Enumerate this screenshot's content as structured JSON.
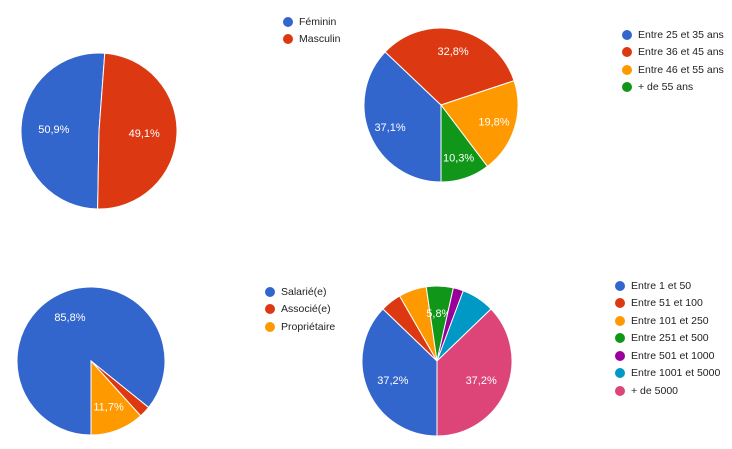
{
  "chart_data": [
    {
      "type": "pie",
      "series": [
        {
          "values": [
            50.9,
            49.1
          ]
        }
      ],
      "categories": [
        "Féminin",
        "Masculin"
      ],
      "colors": [
        "#3366cc",
        "#dc3912"
      ],
      "data_labels": [
        "50,9%",
        "49,1%"
      ]
    },
    {
      "type": "pie",
      "series": [
        {
          "values": [
            37.1,
            32.8,
            19.8,
            10.3
          ]
        }
      ],
      "categories": [
        "Entre 25 et 35 ans",
        "Entre 36 et 45 ans",
        "Entre 46 et 55 ans",
        "+ de 55 ans"
      ],
      "colors": [
        "#3366cc",
        "#dc3912",
        "#ff9900",
        "#109618"
      ],
      "data_labels": [
        "37,1%",
        "32,8%",
        "19,8%",
        "10,3%"
      ]
    },
    {
      "type": "pie",
      "series": [
        {
          "values": [
            85.8,
            2.5,
            11.7
          ]
        }
      ],
      "categories": [
        "Salarié(e)",
        "Associé(e)",
        "Propriétaire"
      ],
      "colors": [
        "#3366cc",
        "#dc3912",
        "#ff9900"
      ],
      "data_labels": [
        "85,8%",
        "",
        "11,7%"
      ]
    },
    {
      "type": "pie",
      "series": [
        {
          "values": [
            37.2,
            4.5,
            6.0,
            5.8,
            2.2,
            7.1,
            37.2
          ]
        }
      ],
      "categories": [
        "Entre 1 et 50",
        "Entre 51 et 100",
        "Entre 101 et 250",
        "Entre 251 et 500",
        "Entre 501 et 1000",
        "Entre 1001 et 5000",
        "+ de 5000"
      ],
      "colors": [
        "#3366cc",
        "#dc3912",
        "#ff9900",
        "#109618",
        "#990099",
        "#0099c6",
        "#dd4477"
      ],
      "data_labels": [
        "37,2%",
        "",
        "",
        "5,8%",
        "",
        "",
        "37,2%"
      ]
    }
  ]
}
